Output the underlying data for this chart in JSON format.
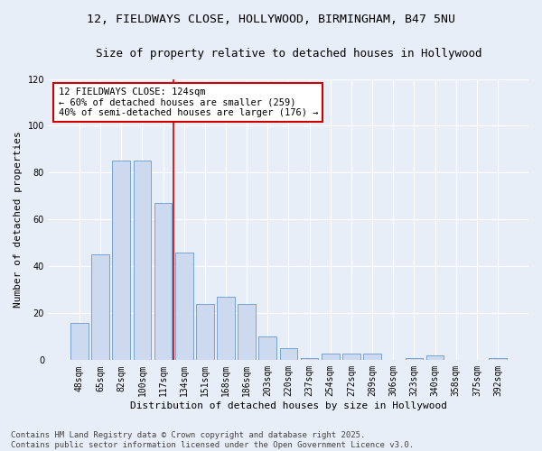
{
  "title_line1": "12, FIELDWAYS CLOSE, HOLLYWOOD, BIRMINGHAM, B47 5NU",
  "title_line2": "Size of property relative to detached houses in Hollywood",
  "xlabel": "Distribution of detached houses by size in Hollywood",
  "ylabel": "Number of detached properties",
  "categories": [
    "48sqm",
    "65sqm",
    "82sqm",
    "100sqm",
    "117sqm",
    "134sqm",
    "151sqm",
    "168sqm",
    "186sqm",
    "203sqm",
    "220sqm",
    "237sqm",
    "254sqm",
    "272sqm",
    "289sqm",
    "306sqm",
    "323sqm",
    "340sqm",
    "358sqm",
    "375sqm",
    "392sqm"
  ],
  "values": [
    16,
    45,
    85,
    85,
    67,
    46,
    24,
    27,
    24,
    10,
    5,
    1,
    3,
    3,
    3,
    0,
    1,
    2,
    0,
    0,
    1
  ],
  "bar_color": "#ccd9ee",
  "bar_edge_color": "#6699cc",
  "background_color": "#e8eef8",
  "grid_color": "#ffffff",
  "annotation_box_text": "12 FIELDWAYS CLOSE: 124sqm\n← 60% of detached houses are smaller (259)\n40% of semi-detached houses are larger (176) →",
  "annotation_box_color": "#ffffff",
  "annotation_box_edge_color": "#cc0000",
  "vline_color": "#cc0000",
  "vline_pos": 4.5,
  "ylim": [
    0,
    120
  ],
  "yticks": [
    0,
    20,
    40,
    60,
    80,
    100,
    120
  ],
  "footer_text": "Contains HM Land Registry data © Crown copyright and database right 2025.\nContains public sector information licensed under the Open Government Licence v3.0.",
  "title_fontsize": 9.5,
  "subtitle_fontsize": 9,
  "axis_label_fontsize": 8,
  "tick_fontsize": 7,
  "annotation_fontsize": 7.5,
  "footer_fontsize": 6.5
}
